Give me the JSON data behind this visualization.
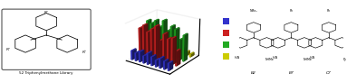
{
  "left_label": "52 Triphenylmethane Library",
  "struct_labels": [
    "B2",
    "B7",
    "C7"
  ],
  "bar_series": {
    "blue": [
      0.25,
      0.22,
      0.28,
      0.2,
      0.3,
      0.24,
      0.18,
      0.26,
      0.22,
      0.2
    ],
    "red": [
      0.75,
      0.85,
      0.7,
      0.8,
      0.9,
      0.55,
      0.75,
      0.65,
      0.7,
      0.4
    ],
    "green": [
      0.85,
      0.8,
      0.9,
      0.75,
      0.95,
      0.7,
      0.85,
      0.8,
      0.55,
      0.7
    ],
    "yellow": [
      0.18,
      0.12,
      0.22,
      0.25,
      0.15,
      0.08,
      0.2,
      0.15,
      0.1,
      0.08
    ]
  },
  "n_groups": 10,
  "bg_color": "#ffffff",
  "legend_colors": [
    "#3333cc",
    "#cc2222",
    "#22aa22",
    "#cccc00"
  ],
  "bar_colors_hex": [
    "#3333cc",
    "#cc2222",
    "#22aa22",
    "#cccc00"
  ]
}
